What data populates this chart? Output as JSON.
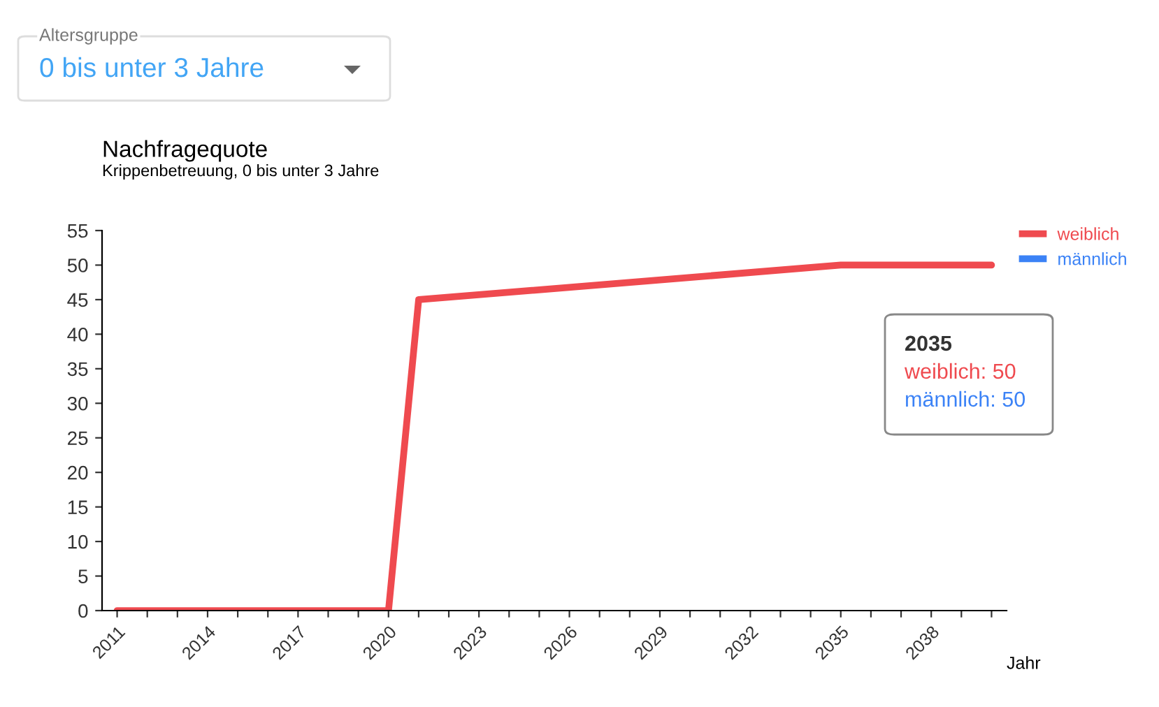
{
  "chart_data": {
    "type": "line",
    "title": "Nachfragequote",
    "subtitle": "Krippenbetreuung, 0 bis unter 3 Jahre",
    "xlabel": "Jahr",
    "x": [
      2011,
      2012,
      2013,
      2014,
      2015,
      2016,
      2017,
      2018,
      2019,
      2020,
      2021,
      2035,
      2040
    ],
    "series": [
      {
        "name": "männlich",
        "color": "#3b82f6",
        "values": [
          null,
          null,
          null,
          null,
          null,
          null,
          null,
          null,
          null,
          null,
          null,
          null,
          null
        ]
      },
      {
        "name": "weiblich",
        "color": "#ef4a4f",
        "values": [
          0,
          0,
          0,
          0,
          0,
          0,
          0,
          0,
          0,
          0,
          45,
          50,
          50
        ]
      }
    ],
    "xlim": [
      2010.5,
      2040.5
    ],
    "xticks": [
      2011,
      {
        "value": 2012,
        "label": null
      },
      {
        "value": 2013,
        "label": null
      },
      2014,
      {
        "value": 2015,
        "label": null
      },
      {
        "value": 2016,
        "label": null
      },
      2017,
      {
        "value": 2018,
        "label": null
      },
      {
        "value": 2019,
        "label": null
      },
      2020,
      {
        "value": 2021,
        "label": null
      },
      {
        "value": 2022,
        "label": null
      },
      2023,
      {
        "value": 2024,
        "label": null
      },
      {
        "value": 2025,
        "label": null
      },
      2026,
      {
        "value": 2027,
        "label": null
      },
      {
        "value": 2028,
        "label": null
      },
      2029,
      {
        "value": 2030,
        "label": null
      },
      {
        "value": 2031,
        "label": null
      },
      2032,
      {
        "value": 2033,
        "label": null
      },
      {
        "value": 2034,
        "label": null
      },
      2035,
      {
        "value": 2036,
        "label": null
      },
      {
        "value": 2037,
        "label": null
      },
      2038,
      {
        "value": 2039,
        "label": null
      },
      {
        "value": 2040,
        "label": null
      }
    ],
    "ylim": [
      0,
      55
    ],
    "yticks": [
      0,
      5,
      10,
      15,
      20,
      25,
      30,
      35,
      40,
      45,
      50,
      55
    ],
    "grid": false,
    "legend": "top right",
    "marker": "none",
    "line_style": "solid",
    "annotations": [
      "Altersgruppe",
      "0 bis unter 3 Jahre",
      "2035",
      "weiblich: 50",
      "männlich: 50"
    ]
  }
}
